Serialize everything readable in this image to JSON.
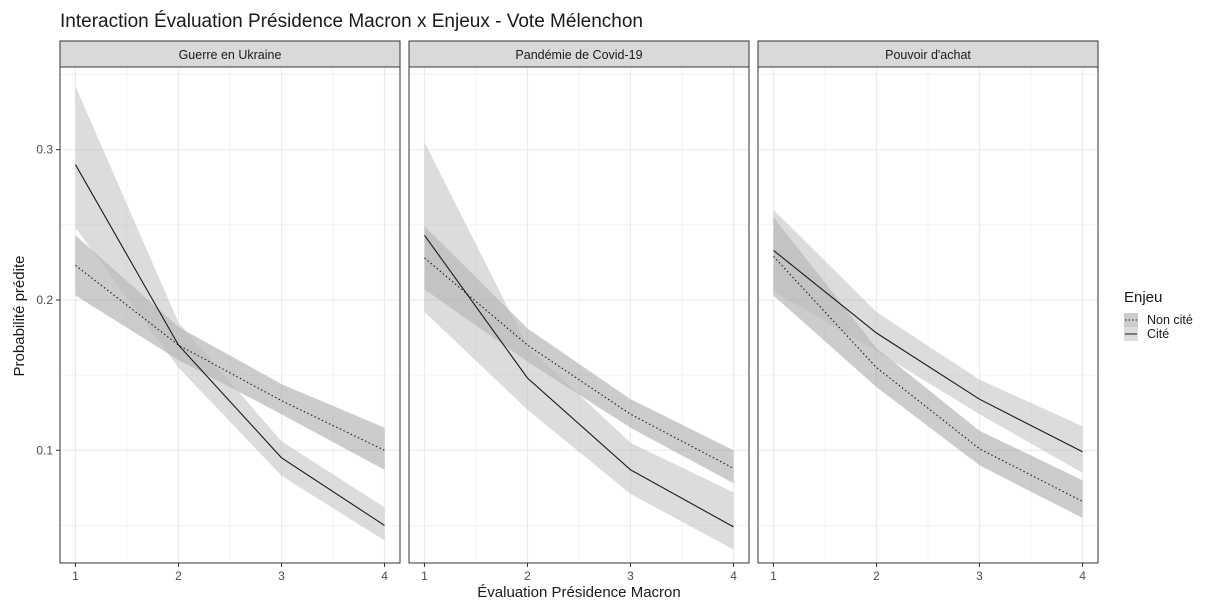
{
  "chart_data": {
    "type": "line",
    "title": "Interaction Évaluation Présidence Macron x Enjeux - Vote Mélenchon",
    "xlabel": "Évaluation Présidence Macron",
    "ylabel": "Probabilité prédite",
    "xlim": [
      0.85,
      4.15
    ],
    "ylim": [
      0.025,
      0.355
    ],
    "x_ticks": [
      1,
      2,
      3,
      4
    ],
    "x_tick_labels": [
      "1",
      "2",
      "3",
      "4"
    ],
    "y_ticks": [
      0.1,
      0.2,
      0.3
    ],
    "y_tick_labels": [
      "0.1",
      "0.2",
      "0.3"
    ],
    "grid": true,
    "legend": {
      "title": "Enjeu",
      "position": "right",
      "entries": [
        {
          "label": "Non cité",
          "linetype": "dotted"
        },
        {
          "label": "Cité",
          "linetype": "solid"
        }
      ]
    },
    "facets": [
      {
        "label": "Guerre en Ukraine",
        "series": [
          {
            "name": "Non cité",
            "x": [
              1,
              2,
              3,
              4
            ],
            "y": [
              0.223,
              0.17,
              0.133,
              0.1
            ],
            "lower": [
              0.203,
              0.16,
              0.124,
              0.087
            ],
            "upper": [
              0.243,
              0.182,
              0.144,
              0.115
            ]
          },
          {
            "name": "Cité",
            "x": [
              1,
              2,
              3,
              4
            ],
            "y": [
              0.29,
              0.17,
              0.095,
              0.05
            ],
            "lower": [
              0.248,
              0.155,
              0.083,
              0.04
            ],
            "upper": [
              0.342,
              0.185,
              0.106,
              0.062
            ]
          }
        ]
      },
      {
        "label": "Pandémie de Covid-19",
        "series": [
          {
            "name": "Non cité",
            "x": [
              1,
              2,
              3,
              4
            ],
            "y": [
              0.228,
              0.17,
              0.124,
              0.088
            ],
            "lower": [
              0.207,
              0.159,
              0.115,
              0.078
            ],
            "upper": [
              0.249,
              0.181,
              0.134,
              0.1
            ]
          },
          {
            "name": "Cité",
            "x": [
              1,
              2,
              3,
              4
            ],
            "y": [
              0.243,
              0.148,
              0.087,
              0.049
            ],
            "lower": [
              0.192,
              0.127,
              0.071,
              0.034
            ],
            "upper": [
              0.305,
              0.169,
              0.105,
              0.072
            ]
          }
        ]
      },
      {
        "label": "Pouvoir d'achat",
        "series": [
          {
            "name": "Non cité",
            "x": [
              1,
              2,
              3,
              4
            ],
            "y": [
              0.229,
              0.155,
              0.101,
              0.066
            ],
            "lower": [
              0.203,
              0.142,
              0.09,
              0.055
            ],
            "upper": [
              0.255,
              0.168,
              0.113,
              0.08
            ]
          },
          {
            "name": "Cité",
            "x": [
              1,
              2,
              3,
              4
            ],
            "y": [
              0.233,
              0.178,
              0.134,
              0.099
            ],
            "lower": [
              0.206,
              0.166,
              0.124,
              0.085
            ],
            "upper": [
              0.26,
              0.192,
              0.147,
              0.116
            ]
          }
        ]
      }
    ]
  },
  "colors": {
    "ribbon_non_cite": "#9a9a9a",
    "ribbon_cite": "#b9b9b9",
    "line": "#1a1a1a",
    "strip_fill": "#d9d9d9",
    "grid": "#ebebeb",
    "panel_border": "#333333"
  }
}
